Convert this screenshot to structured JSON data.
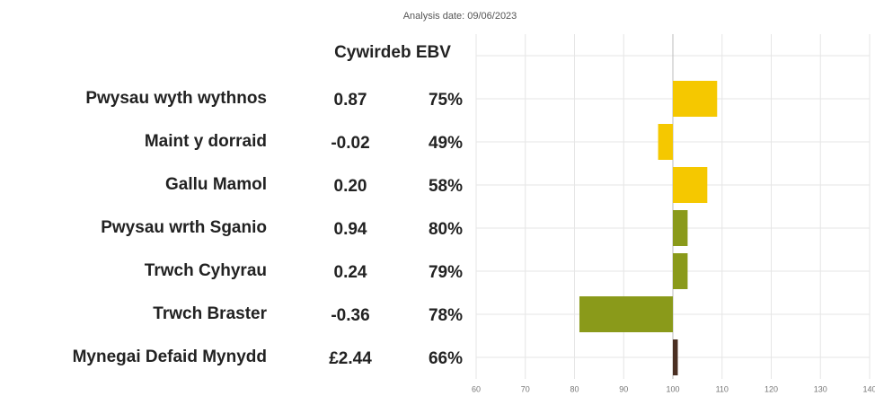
{
  "chart_data": {
    "type": "bar",
    "orientation": "horizontal",
    "title": "Analysis date: 09/06/2023",
    "column_header": "Cywirdeb EBV",
    "categories": [
      "Pwysau wyth wythnos",
      "Maint y dorraid",
      "Gallu Mamol",
      "Pwysau wrth Sganio",
      "Trwch Cyhyrau",
      "Trwch Braster",
      "Mynegai Defaid Mynydd"
    ],
    "ebv": [
      "0.87",
      "-0.02",
      "0.20",
      "0.94",
      "0.24",
      "-0.36",
      "£2.44"
    ],
    "accuracy": [
      "75%",
      "49%",
      "58%",
      "80%",
      "79%",
      "78%",
      "66%"
    ],
    "values": [
      109,
      97,
      107,
      103,
      103,
      81,
      101
    ],
    "colors": [
      "#f5c800",
      "#f5c800",
      "#f5c800",
      "#8a9a1a",
      "#8a9a1a",
      "#8a9a1a",
      "#4a2f22"
    ],
    "baseline": 100,
    "xlim": [
      60,
      140
    ],
    "xticks": [
      60,
      70,
      80,
      90,
      100,
      110,
      120,
      130,
      140
    ],
    "grid": true
  }
}
